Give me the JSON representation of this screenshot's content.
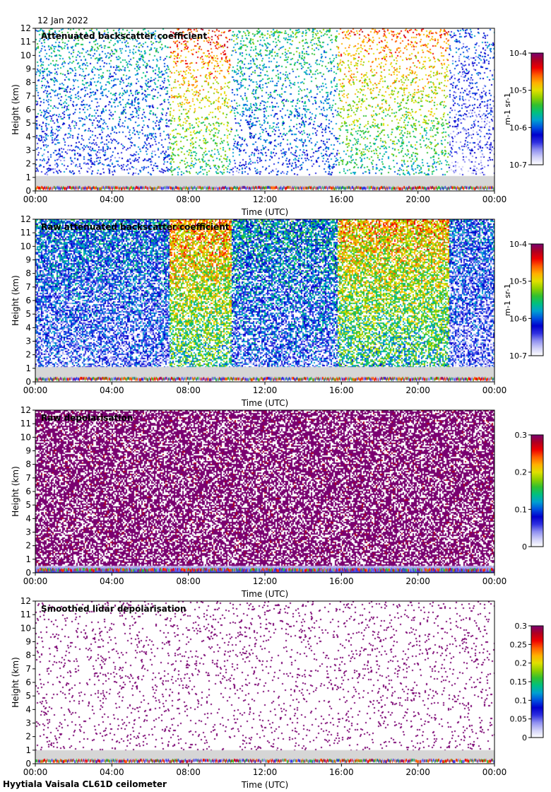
{
  "date": "12 Jan 2022",
  "footer": "Hyytiala Vaisala CL61D ceilometer",
  "colors": {
    "palette": [
      "#ffffff",
      "#d0d0f8",
      "#9090f0",
      "#3030e0",
      "#0000cc",
      "#0050e0",
      "#00a0d0",
      "#00c080",
      "#30c030",
      "#90d000",
      "#e0e000",
      "#ffb000",
      "#ff6000",
      "#ee0000",
      "#b00020",
      "#7a0070"
    ],
    "lowband": "#d6d6d6"
  },
  "chart_data": [
    {
      "type": "heatmap",
      "id": "p1",
      "title": "Attenuated backscatter coefficient",
      "xlabel": "Time (UTC)",
      "ylabel": "Height (km)",
      "xticks": [
        "00:00",
        "04:00",
        "08:00",
        "12:00",
        "16:00",
        "20:00",
        "00:00"
      ],
      "xlim": [
        0,
        24
      ],
      "yticks": [
        "0",
        "1",
        "2",
        "3",
        "4",
        "5",
        "6",
        "7",
        "8",
        "9",
        "10",
        "11",
        "12"
      ],
      "ylim": [
        0,
        12
      ],
      "colorbar": {
        "scale": "log",
        "labels": [
          "10-4",
          "10-5",
          "10-6",
          "10-7"
        ],
        "unit": "m-1 sr-1",
        "range": [
          1e-07,
          0.0001
        ]
      },
      "texture": "sparse-noise",
      "noise_segments": [
        {
          "t0": 0,
          "t1": 7,
          "level": 0.45
        },
        {
          "t0": 7,
          "t1": 10.2,
          "level": 0.85
        },
        {
          "t0": 10.2,
          "t1": 15.8,
          "level": 0.5
        },
        {
          "t0": 15.8,
          "t1": 21.6,
          "level": 0.8
        },
        {
          "t0": 21.6,
          "t1": 24,
          "level": 0.3
        }
      ],
      "low_band_km": [
        0,
        1.1
      ]
    },
    {
      "type": "heatmap",
      "id": "p2",
      "title": "Raw attenuated backscatter coefficient",
      "xlabel": "Time (UTC)",
      "ylabel": "Height (km)",
      "xticks": [
        "00:00",
        "04:00",
        "08:00",
        "12:00",
        "16:00",
        "20:00",
        "00:00"
      ],
      "xlim": [
        0,
        24
      ],
      "yticks": [
        "0",
        "1",
        "2",
        "3",
        "4",
        "5",
        "6",
        "7",
        "8",
        "9",
        "10",
        "11",
        "12"
      ],
      "ylim": [
        0,
        12
      ],
      "colorbar": {
        "scale": "log",
        "labels": [
          "10-4",
          "10-5",
          "10-6",
          "10-7"
        ],
        "unit": "m-1 sr-1",
        "range": [
          1e-07,
          0.0001
        ]
      },
      "texture": "dense-noise",
      "noise_segments": [
        {
          "t0": 0,
          "t1": 7,
          "level": 0.35
        },
        {
          "t0": 7,
          "t1": 10.2,
          "level": 0.75
        },
        {
          "t0": 10.2,
          "t1": 15.8,
          "level": 0.4
        },
        {
          "t0": 15.8,
          "t1": 21.6,
          "level": 0.72
        },
        {
          "t0": 21.6,
          "t1": 24,
          "level": 0.3
        }
      ],
      "low_band_km": [
        0,
        1.1
      ]
    },
    {
      "type": "heatmap",
      "id": "p3",
      "title": "Raw depolarisation",
      "xlabel": "Time (UTC)",
      "ylabel": "Height (km)",
      "xticks": [
        "00:00",
        "04:00",
        "08:00",
        "12:00",
        "16:00",
        "20:00",
        "00:00"
      ],
      "xlim": [
        0,
        24
      ],
      "yticks": [
        "0",
        "1",
        "2",
        "3",
        "4",
        "5",
        "6",
        "7",
        "8",
        "9",
        "10",
        "11",
        "12"
      ],
      "ylim": [
        0,
        12
      ],
      "colorbar": {
        "scale": "linear",
        "labels": [
          "0.3",
          "0.2",
          "0.1",
          "0"
        ],
        "unit": "",
        "range": [
          0,
          0.3
        ]
      },
      "texture": "purple-noise",
      "noise_segments": [
        {
          "t0": 0,
          "t1": 24,
          "level": 0.95
        }
      ],
      "low_band_km": [
        0,
        0.5
      ]
    },
    {
      "type": "heatmap",
      "id": "p4",
      "title": "Smoothed lidar depolarisation",
      "xlabel": "Time (UTC)",
      "ylabel": "Height (km)",
      "xticks": [
        "00:00",
        "04:00",
        "08:00",
        "12:00",
        "16:00",
        "20:00",
        "00:00"
      ],
      "xlim": [
        0,
        24
      ],
      "yticks": [
        "0",
        "1",
        "2",
        "3",
        "4",
        "5",
        "6",
        "7",
        "8",
        "9",
        "10",
        "11",
        "12"
      ],
      "ylim": [
        0,
        12
      ],
      "colorbar": {
        "scale": "linear",
        "labels": [
          "0.3",
          "0.25",
          "0.2",
          "0.15",
          "0.1",
          "0.05",
          "0"
        ],
        "unit": "",
        "range": [
          0,
          0.3
        ]
      },
      "texture": "sparse-purple",
      "noise_segments": [
        {
          "t0": 0,
          "t1": 24,
          "level": 0.95
        }
      ],
      "low_band_km": [
        0,
        1.0
      ]
    }
  ]
}
